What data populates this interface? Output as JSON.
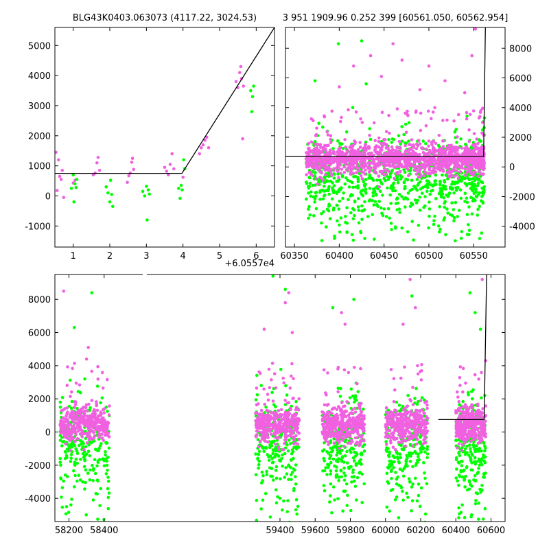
{
  "colors": {
    "magenta": "#f060e0",
    "green": "#00ff00",
    "model": "#000000",
    "axes": "#000000"
  },
  "chart_data": [
    {
      "id": "zoom",
      "type": "scatter",
      "title": "BLG43K0403.063073 (4117.22, 3024.53)",
      "x_offset_label": "+6.0557e4",
      "xlim": [
        0.5,
        6.5
      ],
      "ylim": [
        -1700,
        5600
      ],
      "x_ticks": [
        1,
        2,
        3,
        4,
        5,
        6
      ],
      "y_ticks": [
        -1000,
        0,
        1000,
        2000,
        3000,
        4000,
        5000
      ],
      "y_axis_side": "left",
      "model_line": {
        "x": [
          0.5,
          3.97,
          6.5
        ],
        "y": [
          750,
          750,
          5600
        ]
      },
      "series": [
        {
          "color": "magenta",
          "points": [
            [
              0.53,
              1450
            ],
            [
              0.56,
              180
            ],
            [
              0.6,
              1200
            ],
            [
              0.63,
              650
            ],
            [
              0.67,
              550
            ],
            [
              0.7,
              850
            ],
            [
              0.74,
              -50
            ],
            [
              1.0,
              430
            ],
            [
              1.05,
              520
            ],
            [
              1.55,
              700
            ],
            [
              1.6,
              760
            ],
            [
              1.65,
              1100
            ],
            [
              1.68,
              1280
            ],
            [
              1.72,
              850
            ],
            [
              2.48,
              450
            ],
            [
              2.52,
              670
            ],
            [
              2.56,
              760
            ],
            [
              2.6,
              1120
            ],
            [
              2.62,
              1250
            ],
            [
              2.65,
              880
            ],
            [
              3.5,
              950
            ],
            [
              3.55,
              820
            ],
            [
              3.6,
              700
            ],
            [
              3.65,
              1050
            ],
            [
              3.7,
              1400
            ],
            [
              3.75,
              900
            ],
            [
              4.0,
              620
            ],
            [
              4.45,
              1400
            ],
            [
              4.5,
              1600
            ],
            [
              4.55,
              1700
            ],
            [
              4.6,
              1850
            ],
            [
              4.65,
              1950
            ],
            [
              4.7,
              1600
            ],
            [
              5.45,
              3800
            ],
            [
              5.5,
              3600
            ],
            [
              5.55,
              4100
            ],
            [
              5.58,
              4300
            ],
            [
              5.6,
              3900
            ],
            [
              5.63,
              1900
            ],
            [
              5.65,
              3650
            ]
          ]
        },
        {
          "color": "green",
          "points": [
            [
              0.95,
              250
            ],
            [
              1.0,
              700
            ],
            [
              1.02,
              -200
            ],
            [
              1.05,
              400
            ],
            [
              1.08,
              280
            ],
            [
              1.1,
              550
            ],
            [
              1.9,
              300
            ],
            [
              1.95,
              100
            ],
            [
              2.0,
              -200
            ],
            [
              2.02,
              520
            ],
            [
              2.05,
              50
            ],
            [
              2.08,
              -350
            ],
            [
              2.9,
              150
            ],
            [
              2.95,
              0
            ],
            [
              3.0,
              320
            ],
            [
              3.02,
              -800
            ],
            [
              3.05,
              200
            ],
            [
              3.08,
              60
            ],
            [
              3.88,
              250
            ],
            [
              3.92,
              -80
            ],
            [
              3.95,
              350
            ],
            [
              3.98,
              200
            ],
            [
              4.02,
              1200
            ],
            [
              4.05,
              900
            ],
            [
              5.85,
              3500
            ],
            [
              5.88,
              2800
            ],
            [
              5.9,
              3300
            ],
            [
              5.93,
              3650
            ]
          ]
        }
      ]
    },
    {
      "id": "season",
      "type": "scatter",
      "title": "3 951 1909.96 0.252 399 [60561.050, 60562.954]",
      "xlim": [
        60340,
        60585
      ],
      "ylim": [
        -5400,
        9400
      ],
      "x_ticks": [
        60350,
        60400,
        60450,
        60500,
        60550
      ],
      "y_ticks": [
        -4000,
        -2000,
        0,
        2000,
        4000,
        6000,
        8000
      ],
      "y_axis_side": "right",
      "model_line": {
        "x": [
          60340,
          60561,
          60563
        ],
        "y": [
          700,
          700,
          9400
        ]
      },
      "bands": [
        [
          60363,
          60395
        ],
        [
          60397,
          60430
        ],
        [
          60432,
          60470
        ],
        [
          60472,
          60508
        ],
        [
          60510,
          60538
        ],
        [
          60540,
          60562
        ]
      ],
      "scatter_spec": {
        "magenta_center": 500,
        "magenta_spread": 1400,
        "green_center": -500,
        "green_spread": 3000,
        "outlier_top": 8000
      },
      "series": [
        {
          "color": "magenta",
          "points": [
            [
              60400,
              5400
            ],
            [
              60416,
              6800
            ],
            [
              60435,
              7500
            ],
            [
              60447,
              6100
            ],
            [
              60460,
              8300
            ],
            [
              60470,
              7200
            ],
            [
              60490,
              5200
            ],
            [
              60500,
              6800
            ],
            [
              60518,
              5800
            ],
            [
              60540,
              5000
            ],
            [
              60548,
              7500
            ],
            [
              60552,
              9300
            ],
            [
              60556,
              3300
            ],
            [
              60558,
              3800
            ],
            [
              60560,
              3000
            ]
          ]
        },
        {
          "color": "green",
          "points": [
            [
              60373,
              5800
            ],
            [
              60399,
              8300
            ],
            [
              60425,
              8500
            ],
            [
              60415,
              4000
            ],
            [
              60430,
              5600
            ],
            [
              60560,
              2500
            ],
            [
              60562,
              3300
            ]
          ]
        }
      ]
    },
    {
      "id": "full",
      "type": "scatter",
      "title": "",
      "xlim": [
        58120,
        60680
      ],
      "ylim": [
        -5400,
        9500
      ],
      "x_ticks": [
        58200,
        58400,
        59400,
        59600,
        59800,
        60000,
        60200,
        60400,
        60600
      ],
      "y_ticks": [
        -4000,
        -2000,
        0,
        2000,
        4000,
        6000,
        8000
      ],
      "y_axis_side": "left",
      "model_line": {
        "x": [
          60300,
          60561,
          60575
        ],
        "y": [
          750,
          750,
          9500
        ]
      },
      "seasons": [
        {
          "x": [
            58150,
            58430
          ],
          "outlier_top": 8500
        },
        {
          "x": [
            59260,
            59510
          ],
          "outlier_top": 9400
        },
        {
          "x": [
            59640,
            59880
          ],
          "outlier_top": 8000
        },
        {
          "x": [
            60000,
            60240
          ],
          "outlier_top": 9300
        },
        {
          "x": [
            60400,
            60570
          ],
          "outlier_top": 9200
        }
      ],
      "scatter_spec": {
        "magenta_center": 400,
        "magenta_spread": 1500,
        "green_center": -700,
        "green_spread": 3300
      },
      "series": [
        {
          "color": "magenta",
          "points": [
            [
              58170,
              8500
            ],
            [
              58310,
              5100
            ],
            [
              58300,
              4400
            ],
            [
              59310,
              6200
            ],
            [
              59430,
              7800
            ],
            [
              59450,
              8400
            ],
            [
              59470,
              6000
            ],
            [
              59750,
              7200
            ],
            [
              59770,
              6500
            ],
            [
              60100,
              6500
            ],
            [
              60140,
              9200
            ],
            [
              60170,
              7500
            ],
            [
              60550,
              9200
            ],
            [
              60570,
              4300
            ]
          ]
        },
        {
          "color": "green",
          "points": [
            [
              58230,
              6300
            ],
            [
              58330,
              8400
            ],
            [
              58290,
              3200
            ],
            [
              59360,
              9400
            ],
            [
              59430,
              8600
            ],
            [
              59700,
              7500
            ],
            [
              59820,
              8000
            ],
            [
              60150,
              8200
            ],
            [
              60480,
              8400
            ],
            [
              60510,
              7200
            ],
            [
              60540,
              6200
            ]
          ]
        }
      ]
    }
  ]
}
